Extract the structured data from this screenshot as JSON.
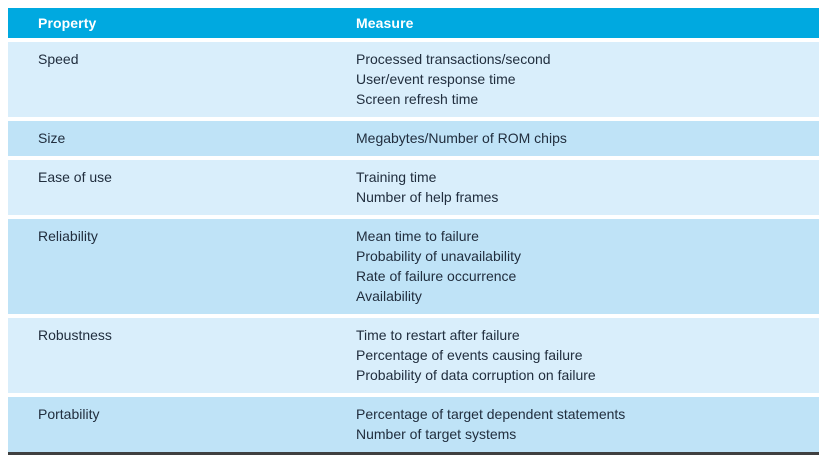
{
  "table": {
    "columns": [
      {
        "label": "Property"
      },
      {
        "label": "Measure"
      }
    ],
    "rows": [
      {
        "property": "Speed",
        "measures": [
          "Processed transactions/second",
          "User/event response time",
          "Screen refresh time"
        ]
      },
      {
        "property": "Size",
        "measures": [
          "Megabytes/Number of ROM chips"
        ]
      },
      {
        "property": "Ease of use",
        "measures": [
          "Training time",
          "Number of help frames"
        ]
      },
      {
        "property": "Reliability",
        "measures": [
          "Mean time to failure",
          "Probability of unavailability",
          "Rate of failure occurrence",
          "Availability"
        ]
      },
      {
        "property": "Robustness",
        "measures": [
          "Time to restart after failure",
          "Percentage of events causing failure",
          "Probability of data corruption on failure"
        ]
      },
      {
        "property": "Portability",
        "measures": [
          "Percentage of target dependent statements",
          "Number of target systems"
        ]
      }
    ],
    "colors": {
      "header_bg": "#00a9e0",
      "header_text": "#ffffff",
      "row_light": "#d9eefb",
      "row_dark": "#bfe3f7",
      "text": "#212e3e",
      "bottom_border": "#404040",
      "page_bg": "#ffffff"
    }
  }
}
